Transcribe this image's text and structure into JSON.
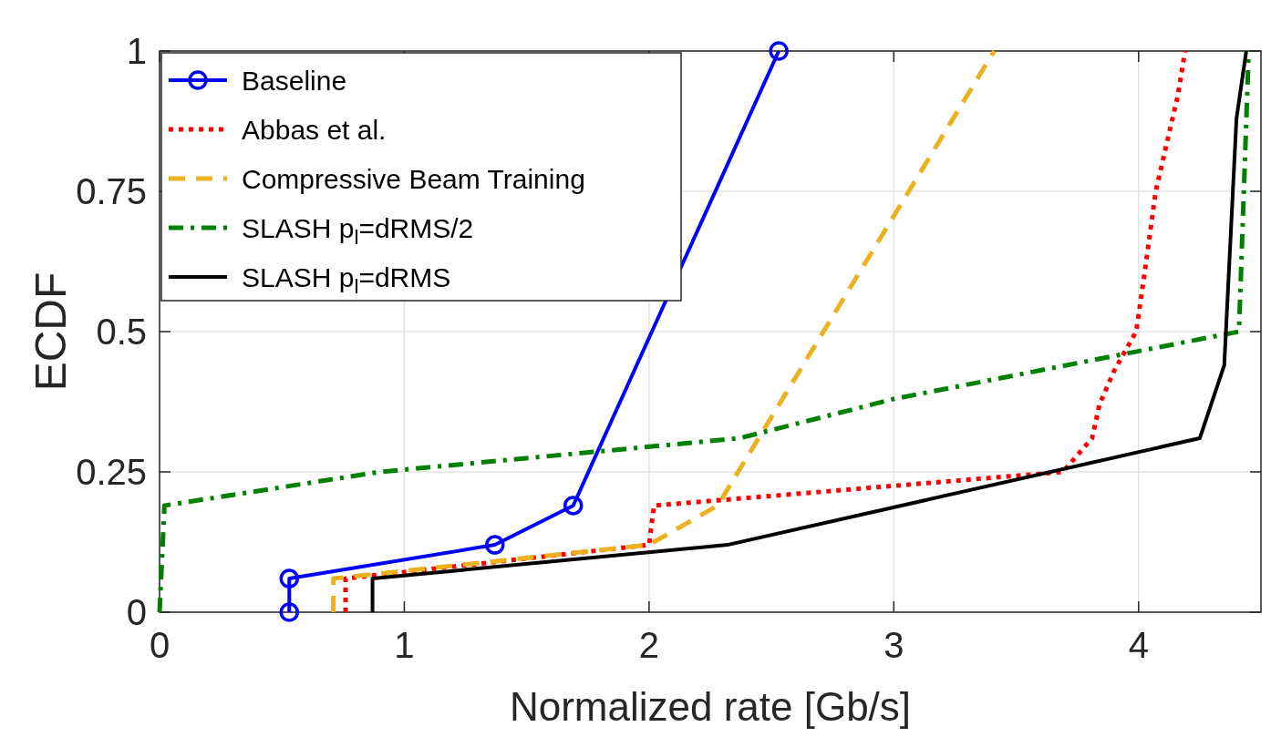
{
  "chart_data": {
    "type": "line",
    "xlabel": "Normalized rate [Gb/s]",
    "ylabel": "ECDF",
    "xlim": [
      0,
      4.5
    ],
    "xticks": [
      0,
      1,
      2,
      3,
      4
    ],
    "ylim": [
      0,
      1
    ],
    "yticks": [
      0,
      {
        "value": 0.25,
        "label": "0.25"
      },
      {
        "value": 0.5,
        "label": "0.5"
      },
      {
        "value": 0.75,
        "label": "0.75"
      },
      1
    ],
    "grid": true,
    "legend": "top left",
    "series": [
      {
        "name": "Baseline",
        "color": "#0000ff",
        "marker": "circle",
        "line_style": "solid",
        "x": [
          0.53,
          0.53,
          1.37,
          1.69,
          2.53
        ],
        "values": [
          0,
          0.06,
          0.12,
          0.19,
          1
        ]
      },
      {
        "name": "Abbas et al.",
        "color": "#ff0000",
        "marker": "none",
        "line_style": "dotted",
        "x": [
          0.76,
          0.76,
          2.0,
          2.02,
          3.69,
          3.81,
          3.84,
          3.9,
          3.99,
          4.02,
          4.07,
          4.16,
          4.19
        ],
        "values": [
          0,
          0.06,
          0.12,
          0.19,
          0.25,
          0.31,
          0.37,
          0.43,
          0.5,
          0.59,
          0.75,
          0.92,
          1
        ]
      },
      {
        "name": "Compressive Beam Training",
        "color": "#edb120",
        "marker": "none",
        "line_style": "dashed",
        "x": [
          0.71,
          0.71,
          2.0,
          2.28,
          3.41
        ],
        "values": [
          0,
          0.06,
          0.12,
          0.19,
          1
        ]
      },
      {
        "name": "SLASH p$_{l}$=dRMS/2",
        "color": "#008000",
        "marker": "none",
        "line_style": "dashdot",
        "x": [
          0,
          0.02,
          0.9,
          2.37,
          3.0,
          4.41,
          4.45
        ],
        "values": [
          0,
          0.19,
          0.25,
          0.31,
          0.38,
          0.5,
          1
        ]
      },
      {
        "name": "SLASH p$_{l}$=dRMS",
        "color": "#000000",
        "marker": "none",
        "line_style": "solid",
        "x": [
          0.87,
          0.87,
          2.32,
          4.25,
          4.35,
          4.4,
          4.44
        ],
        "values": [
          0,
          0.06,
          0.12,
          0.31,
          0.44,
          0.88,
          1
        ]
      }
    ]
  }
}
